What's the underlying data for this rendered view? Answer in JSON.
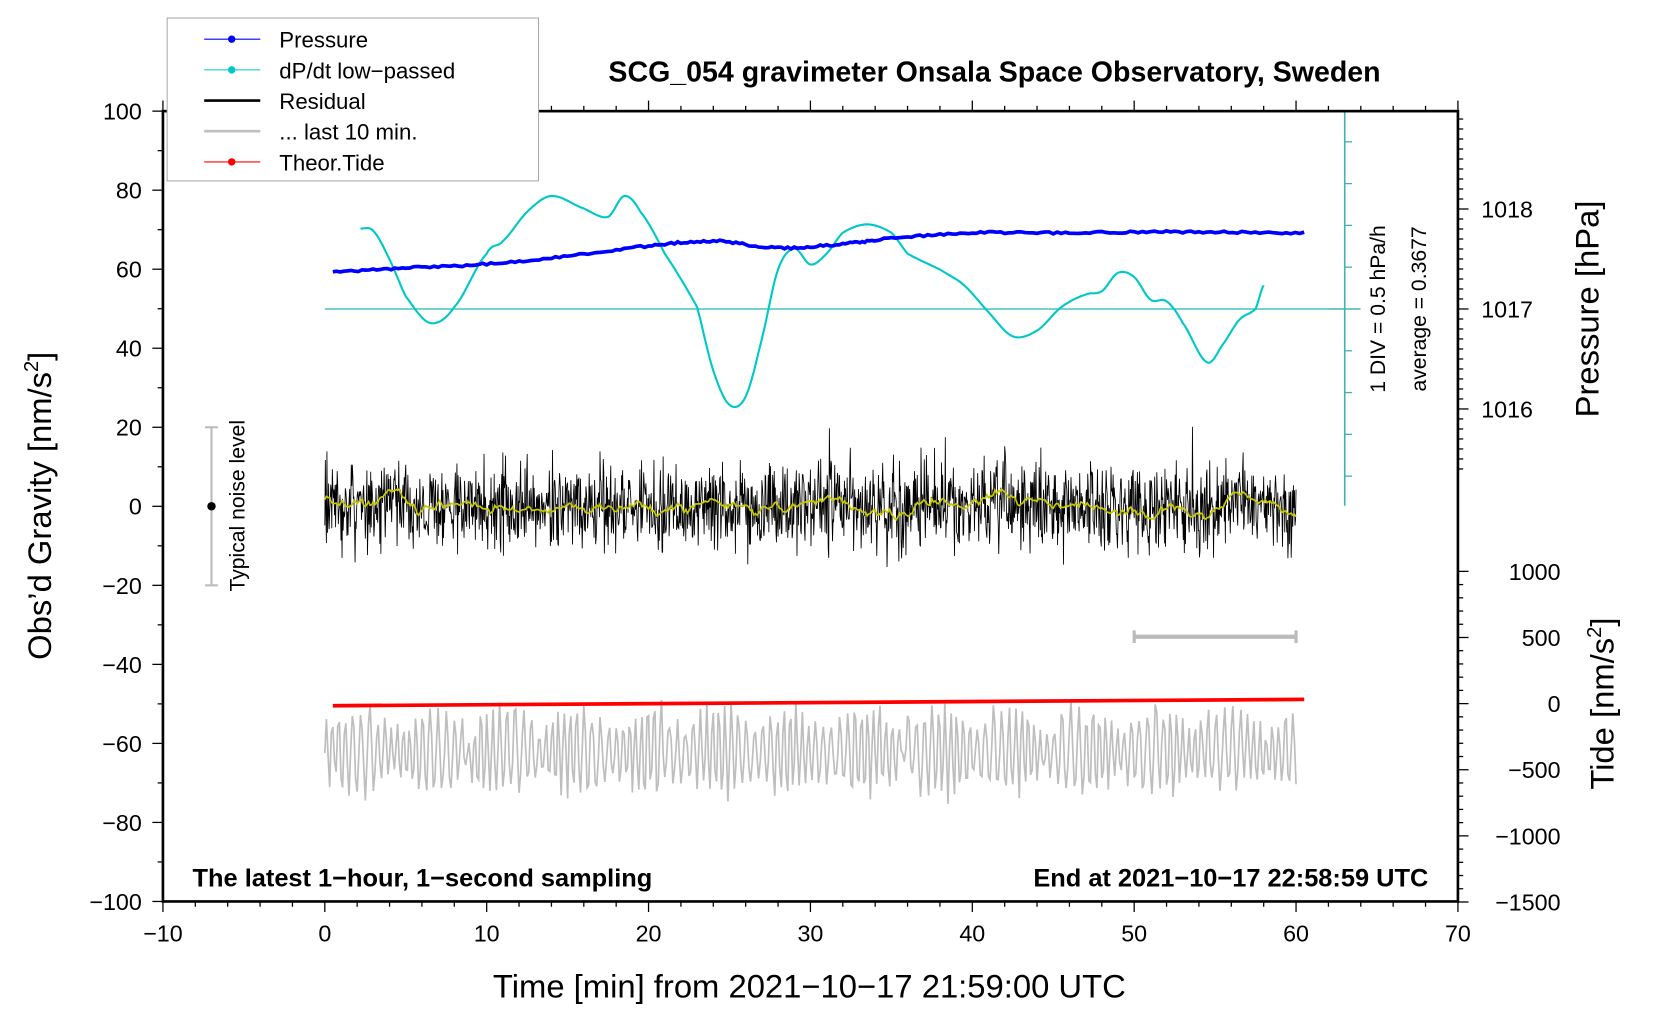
{
  "chart_data": {
    "type": "line",
    "title": "SCG_054 gravimeter Onsala Space Observatory, Sweden",
    "xlabel": "Time [min] from 2021−10−17 21:59:00 UTC",
    "ylabel_left": "Obs’d Gravity [nm/s",
    "ylabel_left_sup": "2",
    "ylabel_left_end": "]",
    "ylabel_right_pressure": "Pressure [hPa]",
    "ylabel_right_tide": "Tide [nm/s",
    "ylabel_right_tide_sup": "2",
    "ylabel_right_tide_end": "]",
    "xlim": [
      -10,
      70
    ],
    "ylim": [
      -100,
      100
    ],
    "pressure_lim_ticks": [
      1016,
      1017,
      1018
    ],
    "tide_ticks": [
      -1500,
      -1000,
      -500,
      0,
      500,
      1000
    ],
    "x_ticks": [
      -10,
      0,
      10,
      20,
      30,
      40,
      50,
      60,
      70
    ],
    "x_tick_labels": [
      "−10",
      "0",
      "10",
      "20",
      "30",
      "40",
      "50",
      "60",
      "70"
    ],
    "y_ticks": [
      -100,
      -80,
      -60,
      -40,
      -20,
      0,
      20,
      40,
      60,
      80,
      100
    ],
    "y_tick_labels": [
      "−100",
      "−80",
      "−60",
      "−40",
      "−20",
      "0",
      "20",
      "40",
      "60",
      "80",
      "100"
    ],
    "tide_tick_labels": [
      "−1500",
      "−1000",
      "−500",
      "0",
      "500",
      "1000"
    ],
    "legend": {
      "placement": "top-left",
      "entries": [
        {
          "label": "Pressure",
          "color": "#0000ff",
          "marker": true
        },
        {
          "label": "dP/dt low−passed",
          "color": "#00c8c8",
          "marker": true
        },
        {
          "label": "Residual",
          "color": "#000000",
          "marker": false
        },
        {
          "label": "... last 10 min.",
          "color": "#bebebe",
          "marker": false
        },
        {
          "label": "Theor.Tide",
          "color": "#ff0000",
          "marker": true
        }
      ]
    },
    "annotations": {
      "bottom_left": "The latest 1−hour, 1−second sampling",
      "bottom_right": "End at 2021−10−17 22:58:59 UTC",
      "noise_label": "Typical noise level",
      "dpdt_scale": "1 DIV = 0.5 hPa/h",
      "dpdt_average": "average = 0.3677"
    },
    "noise_level": {
      "x": -7,
      "center": 0,
      "range": [
        -20,
        20
      ]
    },
    "last10_bar": {
      "x_range": [
        50,
        60
      ],
      "y": -33
    },
    "dpdt_average_value": 0.3677,
    "dpdt_div": 0.5,
    "series": [
      {
        "name": "Pressure",
        "unit": "hPa",
        "color": "#0000ff",
        "x": [
          0.5,
          5,
          10,
          15,
          20,
          24,
          28,
          32,
          35,
          40,
          45,
          50,
          55,
          60.5
        ],
        "values": [
          1017.37,
          1017.41,
          1017.45,
          1017.53,
          1017.63,
          1017.68,
          1017.61,
          1017.65,
          1017.71,
          1017.76,
          1017.76,
          1017.77,
          1017.77,
          1017.76
        ]
      },
      {
        "name": "dP/dt low-passed",
        "unit": "hPa/h",
        "color": "#00c8c8",
        "x": [
          2.2,
          3,
          4,
          5,
          6.5,
          8,
          10,
          11,
          12.5,
          14,
          16,
          17.5,
          18.5,
          19.5,
          21,
          23,
          24,
          25,
          26,
          27,
          28,
          29,
          30,
          31,
          32,
          33.5,
          35,
          36,
          38,
          39.5,
          41,
          42.5,
          44,
          45.5,
          47,
          48,
          49,
          50,
          51,
          52,
          53,
          54.5,
          55.5,
          56.5,
          57.5,
          58
        ],
        "values": [
          1.33,
          1.3,
          0.96,
          0.52,
          0.2,
          0.39,
          1.03,
          1.18,
          1.53,
          1.72,
          1.57,
          1.47,
          1.72,
          1.53,
          1.03,
          0.39,
          -0.37,
          -0.78,
          -0.68,
          0.01,
          0.84,
          1.09,
          0.9,
          1.03,
          1.28,
          1.38,
          1.28,
          1.03,
          0.84,
          0.65,
          0.33,
          0.04,
          0.11,
          0.39,
          0.54,
          0.58,
          0.8,
          0.75,
          0.48,
          0.46,
          0.2,
          -0.27,
          -0.05,
          0.24,
          0.37,
          0.65
        ]
      },
      {
        "name": "Residual",
        "unit": "nm/s2",
        "color": "#000000",
        "x_range": [
          0,
          60
        ],
        "mean": 0,
        "typical_amplitude": 12,
        "max": 22,
        "min": -22
      },
      {
        "name": "Residual smoothed",
        "unit": "nm/s2",
        "color": "#c8c800",
        "x_range": [
          0,
          60
        ],
        "mean": 0,
        "amplitude": 3
      },
      {
        "name": "... last 10 min.",
        "unit": "nm/s2",
        "color": "#bebebe",
        "x_range": [
          0,
          60
        ],
        "offset": -62,
        "typical_amplitude": 10
      },
      {
        "name": "Theor.Tide",
        "unit": "nm/s2",
        "color": "#ff0000",
        "x": [
          0.5,
          60.5
        ],
        "values": [
          -16,
          32
        ]
      }
    ]
  }
}
